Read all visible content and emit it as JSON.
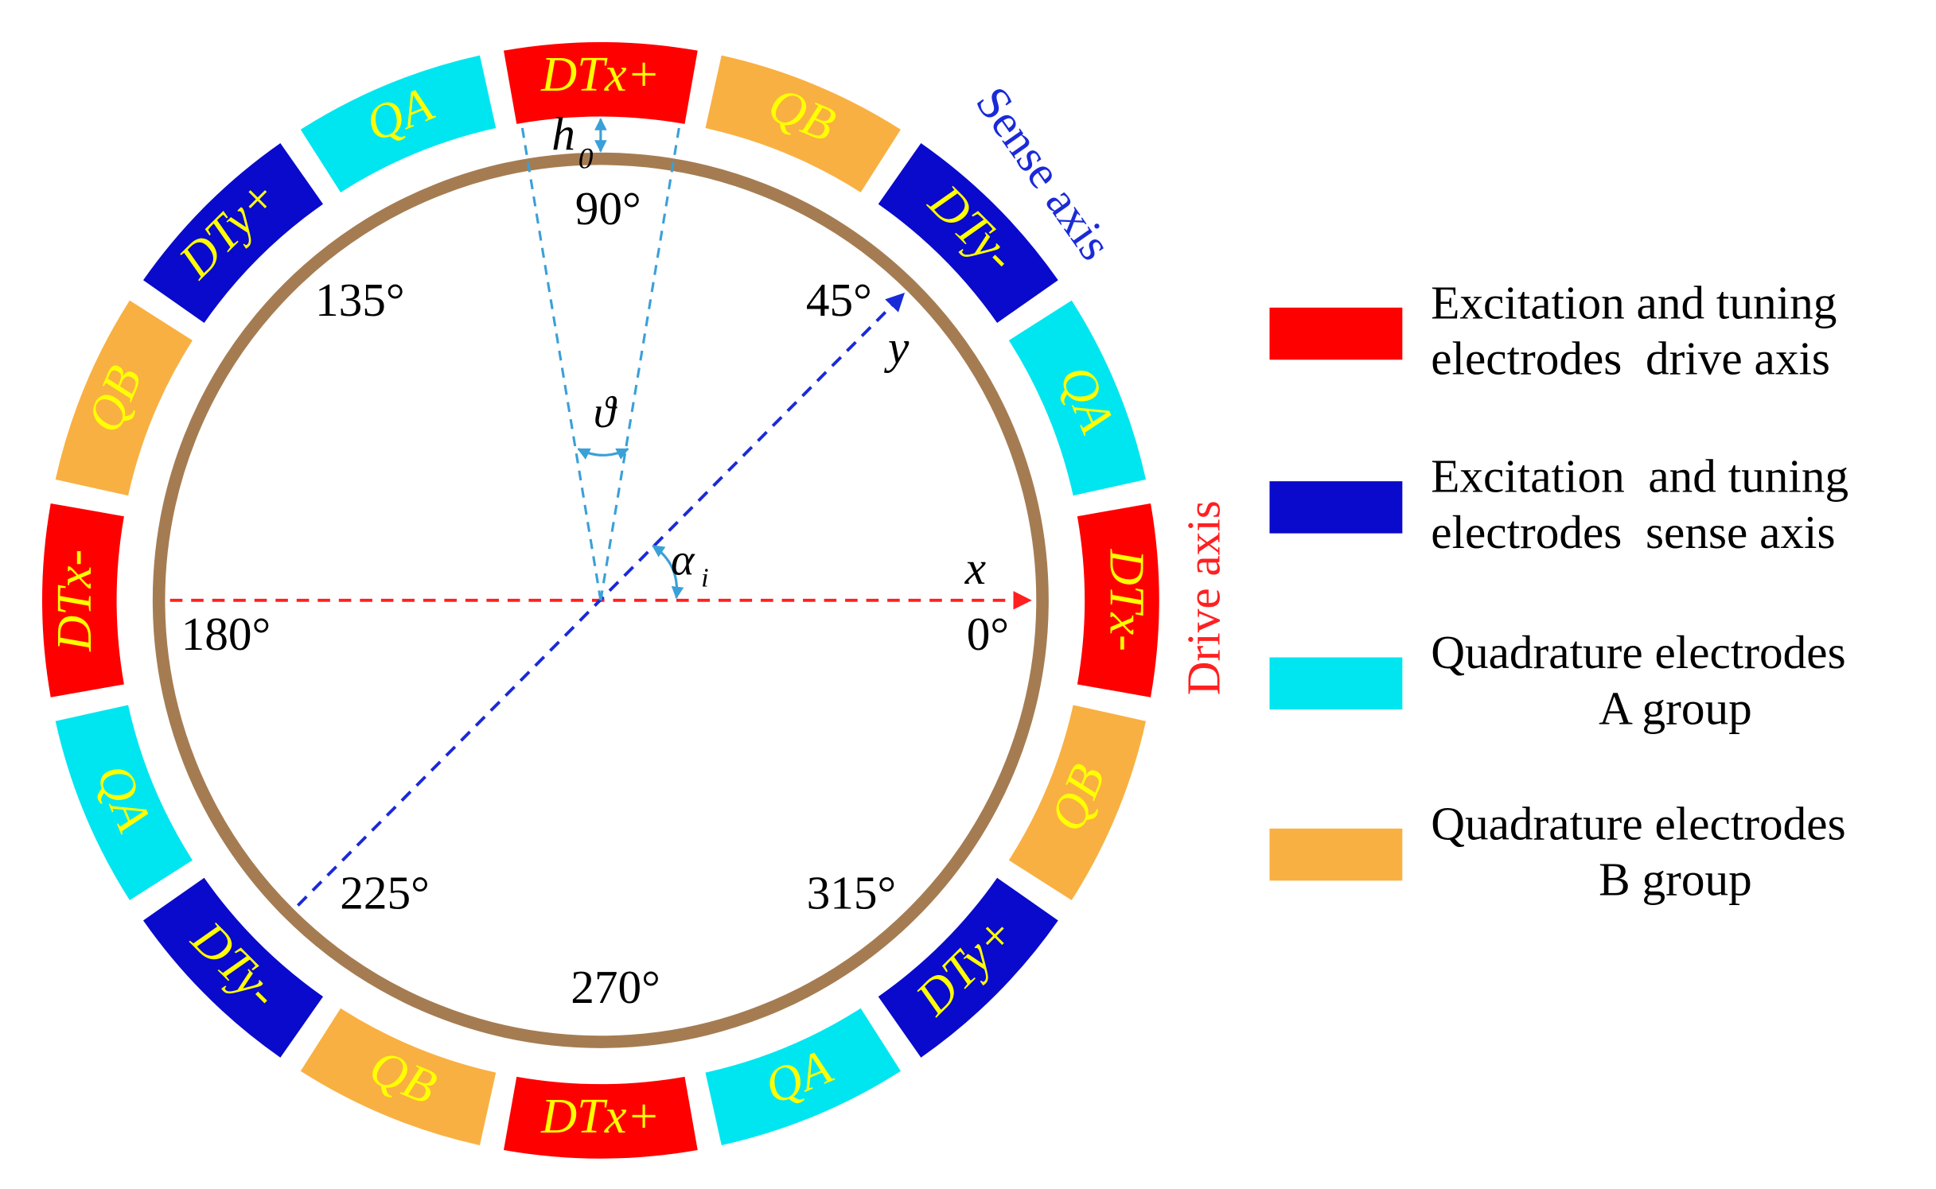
{
  "electrodes": [
    {
      "label": "DTx-",
      "color": "#ff0000"
    },
    {
      "label": "QA",
      "color": "#00e6f0"
    },
    {
      "label": "DTy-",
      "color": "#0a0acc"
    },
    {
      "label": "QB",
      "color": "#f9b042"
    },
    {
      "label": "DTx+",
      "color": "#ff0000"
    },
    {
      "label": "QA",
      "color": "#00e6f0"
    },
    {
      "label": "DTy+",
      "color": "#0a0acc"
    },
    {
      "label": "QB",
      "color": "#f9b042"
    },
    {
      "label": "DTx-",
      "color": "#ff0000"
    },
    {
      "label": "QA",
      "color": "#00e6f0"
    },
    {
      "label": "DTy-",
      "color": "#0a0acc"
    },
    {
      "label": "QB",
      "color": "#f9b042"
    },
    {
      "label": "DTx+",
      "color": "#ff0000"
    },
    {
      "label": "QA",
      "color": "#00e6f0"
    },
    {
      "label": "DTy+",
      "color": "#0a0acc"
    },
    {
      "label": "QB",
      "color": "#f9b042"
    }
  ],
  "angle_labels": [
    "0°",
    "45°",
    "90°",
    "135°",
    "180°",
    "225°",
    "270°",
    "315°"
  ],
  "axes": {
    "drive": "Drive axis",
    "sense": "Sense axis",
    "x": "x",
    "y": "y",
    "alpha": "α",
    "alpha_sub": "i",
    "theta": "ϑ",
    "h": "h",
    "h_sub": "0"
  },
  "legend": [
    {
      "lines": [
        "Excitation and tuning",
        "electrodes  drive axis"
      ],
      "color": "#ff0000"
    },
    {
      "lines": [
        "Excitation  and tuning",
        "electrodes  sense axis"
      ],
      "color": "#0a0acc"
    },
    {
      "lines": [
        "Quadrature electrodes",
        "A group"
      ],
      "color": "#00e6f0"
    },
    {
      "lines": [
        "Quadrature electrodes",
        "B group"
      ],
      "color": "#f9b042"
    }
  ]
}
